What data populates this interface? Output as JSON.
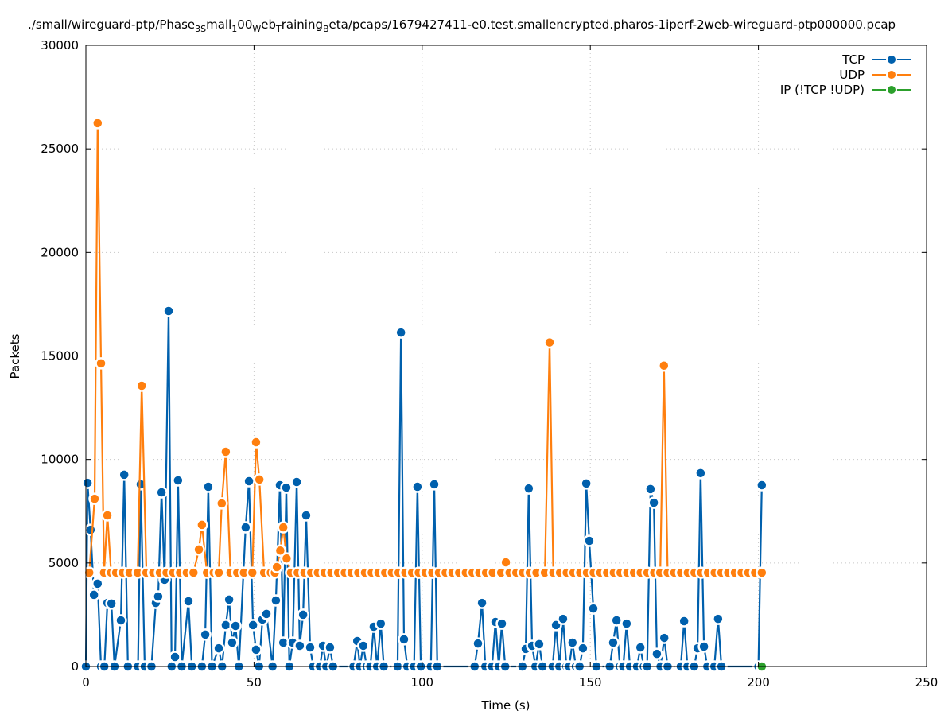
{
  "chart_data": {
    "type": "line",
    "title_parts": [
      {
        "text": "./small/wireguard-ptp/Phase",
        "sub": false
      },
      {
        "text": "3S",
        "sub": true
      },
      {
        "text": "mall",
        "sub": false
      },
      {
        "text": "1",
        "sub": true
      },
      {
        "text": "00",
        "sub": false
      },
      {
        "text": "W",
        "sub": true
      },
      {
        "text": "eb",
        "sub": false
      },
      {
        "text": "T",
        "sub": true
      },
      {
        "text": "raining",
        "sub": false
      },
      {
        "text": "B",
        "sub": true
      },
      {
        "text": "eta/pcaps/1679427411-e0.test.smallencrypted.pharos-1iperf-2web-wireguard-ptp000000.pcap",
        "sub": false
      }
    ],
    "xlabel": "Time (s)",
    "ylabel": "Packets",
    "xlim": [
      0,
      250
    ],
    "ylim": [
      0,
      30000
    ],
    "xticks": [
      0,
      50,
      100,
      150,
      200,
      250
    ],
    "yticks": [
      0,
      5000,
      10000,
      15000,
      20000,
      25000,
      30000
    ],
    "grid": true,
    "legend_position": "top-right",
    "series": [
      {
        "name": "TCP",
        "color": "#0060ad",
        "points": [
          [
            0,
            0
          ],
          [
            0.5,
            8870
          ],
          [
            1.4,
            6600
          ],
          [
            2.4,
            3460
          ],
          [
            3.5,
            4000
          ],
          [
            4.5,
            0
          ],
          [
            5.5,
            0
          ],
          [
            6.4,
            3070
          ],
          [
            7.6,
            3040
          ],
          [
            8.5,
            0
          ],
          [
            10.4,
            2230
          ],
          [
            11.4,
            9260
          ],
          [
            12.5,
            0
          ],
          [
            15.5,
            0
          ],
          [
            16.3,
            8800
          ],
          [
            17.5,
            0
          ],
          [
            19.5,
            0
          ],
          [
            20.8,
            3070
          ],
          [
            21.5,
            3380
          ],
          [
            22.5,
            8410
          ],
          [
            23.4,
            4190
          ],
          [
            24.6,
            17170
          ],
          [
            25.5,
            0
          ],
          [
            26.5,
            460
          ],
          [
            27.4,
            8990
          ],
          [
            28.5,
            0
          ],
          [
            30.5,
            3150
          ],
          [
            31.5,
            0
          ],
          [
            34.5,
            0
          ],
          [
            35.5,
            1540
          ],
          [
            36.4,
            8680
          ],
          [
            37.5,
            0
          ],
          [
            39.5,
            880
          ],
          [
            40.5,
            0
          ],
          [
            41.6,
            2000
          ],
          [
            42.6,
            3230
          ],
          [
            43.5,
            1150
          ],
          [
            44.5,
            1960
          ],
          [
            45.5,
            0
          ],
          [
            47.5,
            6720
          ],
          [
            48.5,
            8950
          ],
          [
            49.7,
            2000
          ],
          [
            50.6,
            810
          ],
          [
            51.5,
            0
          ],
          [
            52.5,
            2270
          ],
          [
            53.7,
            2540
          ],
          [
            55.5,
            0
          ],
          [
            56.5,
            3190
          ],
          [
            57.7,
            8760
          ],
          [
            58.7,
            1150
          ],
          [
            59.6,
            8640
          ],
          [
            60.5,
            0
          ],
          [
            61.5,
            1150
          ],
          [
            62.7,
            8910
          ],
          [
            63.6,
            1000
          ],
          [
            64.6,
            2500
          ],
          [
            65.5,
            7300
          ],
          [
            66.7,
            920
          ],
          [
            67.6,
            0
          ],
          [
            69.6,
            0
          ],
          [
            70.5,
            1000
          ],
          [
            71.5,
            0
          ],
          [
            72.6,
            920
          ],
          [
            73.5,
            0
          ],
          [
            79.6,
            0
          ],
          [
            80.7,
            1230
          ],
          [
            81.5,
            0
          ],
          [
            82.5,
            1000
          ],
          [
            83.5,
            0
          ],
          [
            84.6,
            0
          ],
          [
            85.6,
            1920
          ],
          [
            86.6,
            0
          ],
          [
            87.7,
            2070
          ],
          [
            88.6,
            0
          ],
          [
            92.7,
            0
          ],
          [
            93.7,
            16130
          ],
          [
            94.6,
            1310
          ],
          [
            95.6,
            0
          ],
          [
            97.6,
            0
          ],
          [
            98.6,
            8680
          ],
          [
            99.6,
            0
          ],
          [
            102.6,
            0
          ],
          [
            103.6,
            8800
          ],
          [
            104.5,
            0
          ],
          [
            115.6,
            0
          ],
          [
            116.6,
            1110
          ],
          [
            117.8,
            3070
          ],
          [
            118.8,
            0
          ],
          [
            120.8,
            0
          ],
          [
            121.8,
            2150
          ],
          [
            122.8,
            0
          ],
          [
            123.7,
            2070
          ],
          [
            124.7,
            0
          ],
          [
            129.8,
            0
          ],
          [
            130.8,
            850
          ],
          [
            131.7,
            8600
          ],
          [
            132.7,
            1000
          ],
          [
            133.7,
            0
          ],
          [
            134.8,
            1080
          ],
          [
            135.8,
            0
          ],
          [
            138.8,
            0
          ],
          [
            139.8,
            2000
          ],
          [
            140.8,
            0
          ],
          [
            141.9,
            2300
          ],
          [
            142.9,
            0
          ],
          [
            143.7,
            0
          ],
          [
            144.7,
            1150
          ],
          [
            145.7,
            0
          ],
          [
            146.8,
            0
          ],
          [
            147.8,
            880
          ],
          [
            148.8,
            8840
          ],
          [
            149.7,
            6070
          ],
          [
            150.9,
            2800
          ],
          [
            151.8,
            0
          ],
          [
            155.8,
            0
          ],
          [
            156.8,
            1150
          ],
          [
            157.8,
            2230
          ],
          [
            158.8,
            0
          ],
          [
            159.8,
            0
          ],
          [
            160.8,
            2070
          ],
          [
            161.8,
            0
          ],
          [
            163.9,
            0
          ],
          [
            164.9,
            920
          ],
          [
            165.9,
            0
          ],
          [
            166.9,
            0
          ],
          [
            167.9,
            8570
          ],
          [
            168.9,
            7910
          ],
          [
            169.8,
            610
          ],
          [
            170.9,
            0
          ],
          [
            172.0,
            1380
          ],
          [
            173.0,
            0
          ],
          [
            176.9,
            0
          ],
          [
            177.9,
            2190
          ],
          [
            178.9,
            0
          ],
          [
            180.9,
            0
          ],
          [
            181.9,
            880
          ],
          [
            182.8,
            9340
          ],
          [
            183.8,
            960
          ],
          [
            184.8,
            0
          ],
          [
            186.9,
            0
          ],
          [
            188.0,
            2300
          ],
          [
            189.0,
            0
          ],
          [
            200.0,
            0
          ],
          [
            201.0,
            8760
          ]
        ]
      },
      {
        "name": "UDP",
        "color": "#ff7f0e",
        "points": [
          [
            1,
            4530
          ],
          [
            2.6,
            8100
          ],
          [
            3.5,
            26240
          ],
          [
            4.5,
            14640
          ],
          [
            5.4,
            4530
          ],
          [
            6.4,
            7300
          ],
          [
            7.5,
            4530
          ],
          [
            9,
            4530
          ],
          [
            11,
            4530
          ],
          [
            13,
            4530
          ],
          [
            15.4,
            4530
          ],
          [
            16.6,
            13560
          ],
          [
            18,
            4530
          ],
          [
            20,
            4530
          ],
          [
            22,
            4530
          ],
          [
            24,
            4530
          ],
          [
            26,
            4530
          ],
          [
            28,
            4530
          ],
          [
            30,
            4530
          ],
          [
            32,
            4530
          ],
          [
            33.6,
            5650
          ],
          [
            34.5,
            6840
          ],
          [
            36,
            4530
          ],
          [
            38,
            4530
          ],
          [
            39.5,
            4530
          ],
          [
            40.4,
            7880
          ],
          [
            41.6,
            10370
          ],
          [
            43,
            4530
          ],
          [
            45,
            4530
          ],
          [
            47,
            4530
          ],
          [
            49.5,
            4530
          ],
          [
            50.6,
            10830
          ],
          [
            51.6,
            9030
          ],
          [
            53,
            4530
          ],
          [
            55,
            4530
          ],
          [
            56.2,
            4530
          ],
          [
            56.8,
            4800
          ],
          [
            57.8,
            5600
          ],
          [
            58.7,
            6720
          ],
          [
            59.7,
            5220
          ],
          [
            61,
            4530
          ],
          [
            63,
            4530
          ],
          [
            65,
            4530
          ],
          [
            67,
            4530
          ],
          [
            69,
            4530
          ],
          [
            71,
            4530
          ],
          [
            73,
            4530
          ],
          [
            75,
            4530
          ],
          [
            77,
            4530
          ],
          [
            79,
            4530
          ],
          [
            81,
            4530
          ],
          [
            83,
            4530
          ],
          [
            85,
            4530
          ],
          [
            87,
            4530
          ],
          [
            89,
            4530
          ],
          [
            91,
            4530
          ],
          [
            93,
            4530
          ],
          [
            95,
            4530
          ],
          [
            97,
            4530
          ],
          [
            99,
            4530
          ],
          [
            101,
            4530
          ],
          [
            103,
            4530
          ],
          [
            105,
            4530
          ],
          [
            107,
            4530
          ],
          [
            109,
            4530
          ],
          [
            111,
            4530
          ],
          [
            113,
            4530
          ],
          [
            115,
            4530
          ],
          [
            117,
            4530
          ],
          [
            119,
            4530
          ],
          [
            121,
            4530
          ],
          [
            123.5,
            4530
          ],
          [
            124.9,
            5030
          ],
          [
            126,
            4530
          ],
          [
            128,
            4530
          ],
          [
            130,
            4530
          ],
          [
            132,
            4530
          ],
          [
            134,
            4530
          ],
          [
            136.5,
            4530
          ],
          [
            137.9,
            15650
          ],
          [
            139,
            4530
          ],
          [
            141,
            4530
          ],
          [
            143,
            4530
          ],
          [
            145,
            4530
          ],
          [
            147,
            4530
          ],
          [
            149,
            4530
          ],
          [
            151,
            4530
          ],
          [
            153,
            4530
          ],
          [
            155,
            4530
          ],
          [
            157,
            4530
          ],
          [
            159,
            4530
          ],
          [
            161,
            4530
          ],
          [
            163,
            4530
          ],
          [
            165,
            4530
          ],
          [
            167,
            4530
          ],
          [
            169,
            4530
          ],
          [
            170.8,
            4530
          ],
          [
            171.9,
            14530
          ],
          [
            173,
            4530
          ],
          [
            175,
            4530
          ],
          [
            177,
            4530
          ],
          [
            179,
            4530
          ],
          [
            181,
            4530
          ],
          [
            183,
            4530
          ],
          [
            185,
            4530
          ],
          [
            187,
            4530
          ],
          [
            189,
            4530
          ],
          [
            191,
            4530
          ],
          [
            193,
            4530
          ],
          [
            195,
            4530
          ],
          [
            197,
            4530
          ],
          [
            199,
            4530
          ],
          [
            201,
            4530
          ]
        ]
      },
      {
        "name": "IP (!TCP  !UDP)",
        "color": "#2ca02c",
        "points": [
          [
            201,
            0
          ]
        ]
      }
    ]
  }
}
